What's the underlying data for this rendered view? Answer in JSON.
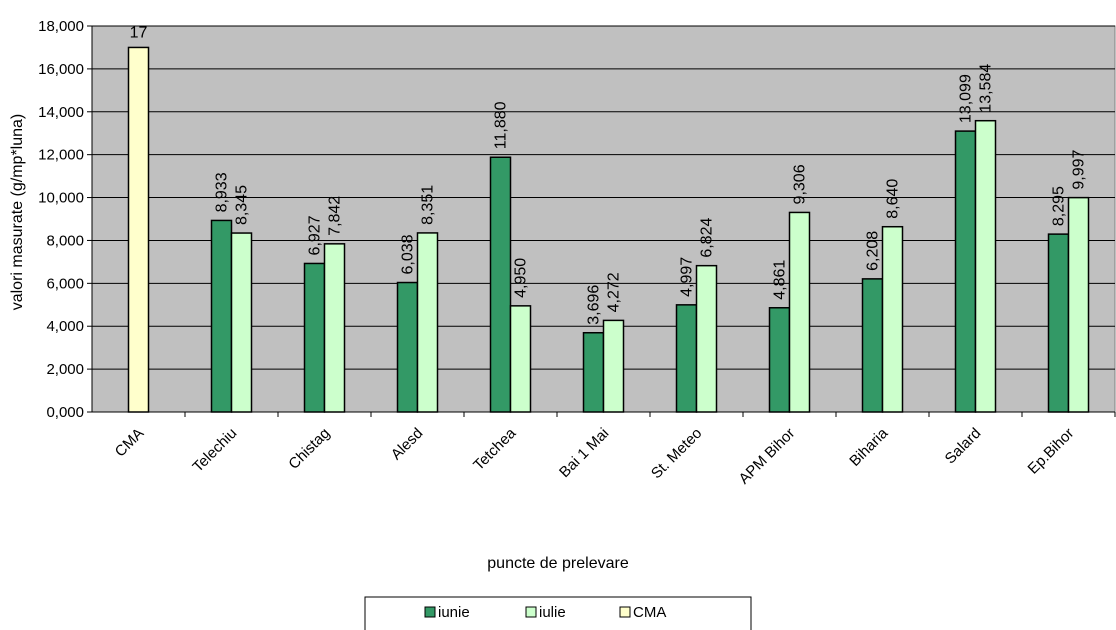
{
  "chart_data": {
    "type": "bar",
    "xlabel": "puncte de prelevare",
    "ylabel": "valori masurate (g/mp*luna)",
    "ylim": [
      0,
      18
    ],
    "yticks": [
      "0,000",
      "2,000",
      "4,000",
      "6,000",
      "8,000",
      "10,000",
      "12,000",
      "14,000",
      "16,000",
      "18,000"
    ],
    "grid": true,
    "legend_position": "bottom",
    "categories": [
      "CMA",
      "Telechiu",
      "Chistag",
      "Alesd",
      "Tetchea",
      "Bai 1 Mai",
      "St. Meteo",
      "APM Bihor",
      "Biharia",
      "Salard",
      "Ep.Bihor"
    ],
    "series": [
      {
        "name": "iunie",
        "color": "#339966",
        "values": [
          null,
          8.933,
          6.927,
          6.038,
          11.88,
          3.696,
          4.997,
          4.861,
          6.208,
          13.099,
          8.295
        ],
        "labels": [
          null,
          "8,933",
          "6,927",
          "6,038",
          "11,880",
          "3,696",
          "4,997",
          "4,861",
          "6,208",
          "13,099",
          "8,295"
        ]
      },
      {
        "name": "iulie",
        "color": "#CCFFCC",
        "values": [
          null,
          8.345,
          7.842,
          8.351,
          4.95,
          4.272,
          6.824,
          9.306,
          8.64,
          13.584,
          9.997
        ],
        "labels": [
          null,
          "8,345",
          "7,842",
          "8,351",
          "4,950",
          "4,272",
          "6,824",
          "9,306",
          "8,640",
          "13,584",
          "9,997"
        ]
      },
      {
        "name": "CMA",
        "color": "#FFFFCC",
        "values": [
          17,
          null,
          null,
          null,
          null,
          null,
          null,
          null,
          null,
          null,
          null
        ],
        "labels": [
          "17",
          null,
          null,
          null,
          null,
          null,
          null,
          null,
          null,
          null,
          null
        ]
      }
    ]
  },
  "colors": {
    "plot_background": "#C0C0C0",
    "gridline": "#000000",
    "bar_border": "#000000"
  }
}
